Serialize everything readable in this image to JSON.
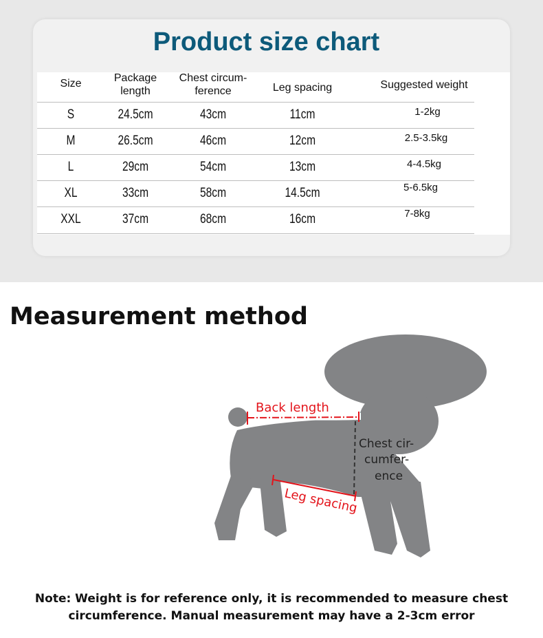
{
  "size_chart": {
    "title": "Product size chart",
    "headers": [
      "Size",
      "Package\nlength",
      "Chest circum-\nference",
      "Leg spacing",
      "Suggested weight"
    ],
    "rows": [
      [
        "S",
        "24.5cm",
        "43cm",
        "11cm",
        "1-2kg"
      ],
      [
        "M",
        "26.5cm",
        "46cm",
        "12cm",
        "2.5-3.5kg"
      ],
      [
        "L",
        "29cm",
        "54cm",
        "13cm",
        "4-4.5kg"
      ],
      [
        "XL",
        "33cm",
        "58cm",
        "14.5cm",
        "5-6.5kg"
      ],
      [
        "XXL",
        "37cm",
        "68cm",
        "16cm",
        "7-8kg"
      ]
    ],
    "title_color": "#0d5a7a"
  },
  "measurement": {
    "title": "Measurement method",
    "labels": {
      "back_length": "Back length",
      "chest_1": "Chest cir-",
      "chest_2": "cumfer-",
      "chest_3": "ence",
      "leg_spacing": "Leg spacing"
    },
    "dog_color": "#838486",
    "line_color": "#e3141b"
  },
  "note": {
    "line1": "Note: Weight is for reference only, it is recommended to measure chest",
    "line2": "circumference. Manual measurement may have a 2-3cm error"
  }
}
